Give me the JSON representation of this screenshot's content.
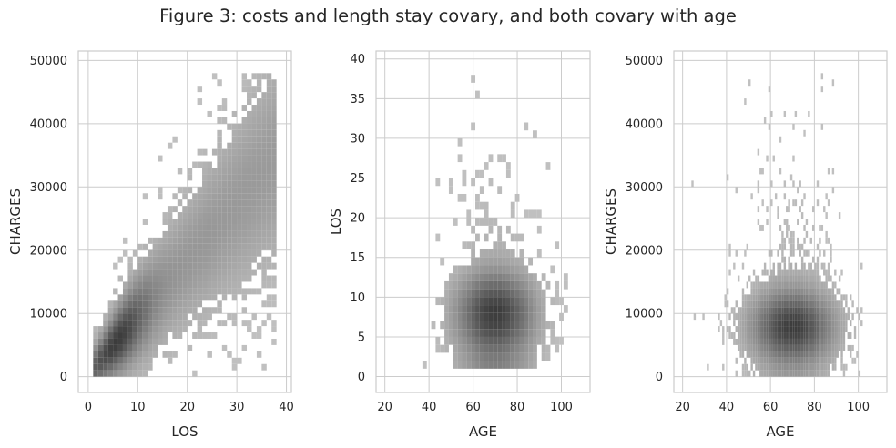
{
  "figure_title": "Figure 3: costs and length stay covary, and both covary with age",
  "colors": {
    "bin_dark": "#3c3c3c",
    "bin_light": "#c6c6c6",
    "grid": "#cccccc",
    "frame": "#cccccc"
  },
  "chart_data": [
    {
      "type": "heatmap",
      "title": "",
      "xlabel": "LOS",
      "ylabel": "CHARGES",
      "xlim": [
        -2,
        41
      ],
      "ylim": [
        -2500,
        51500
      ],
      "xticks": [
        0,
        10,
        20,
        30,
        40
      ],
      "yticks": [
        0,
        10000,
        20000,
        30000,
        40000,
        50000
      ],
      "grid": true,
      "bin_width": [
        1,
        1000
      ],
      "description_density": "strong positive relation; densest bins along charges ≈ 900 × LOS for LOS 1–10",
      "x_range_data": [
        1,
        38
      ],
      "y_range_data": [
        0,
        48000
      ]
    },
    {
      "type": "heatmap",
      "title": "",
      "xlabel": "AGE",
      "ylabel": "LOS",
      "xlim": [
        16,
        113
      ],
      "ylim": [
        -2,
        41
      ],
      "xticks": [
        20,
        40,
        60,
        80,
        100
      ],
      "yticks": [
        0,
        5,
        10,
        15,
        20,
        25,
        30,
        35,
        40
      ],
      "grid": true,
      "bin_width": [
        2,
        1
      ],
      "x_range_data": [
        21,
        102
      ],
      "y_range_data": [
        1,
        38
      ]
    },
    {
      "type": "heatmap",
      "title": "",
      "xlabel": "AGE",
      "ylabel": "CHARGES",
      "xlim": [
        16,
        113
      ],
      "ylim": [
        -2500,
        51500
      ],
      "xticks": [
        20,
        40,
        60,
        80,
        100
      ],
      "yticks": [
        0,
        10000,
        20000,
        30000,
        40000,
        50000
      ],
      "grid": true,
      "bin_width": [
        1,
        1000
      ],
      "x_range_data": [
        21,
        102
      ],
      "y_range_data": [
        0,
        48000
      ]
    }
  ]
}
